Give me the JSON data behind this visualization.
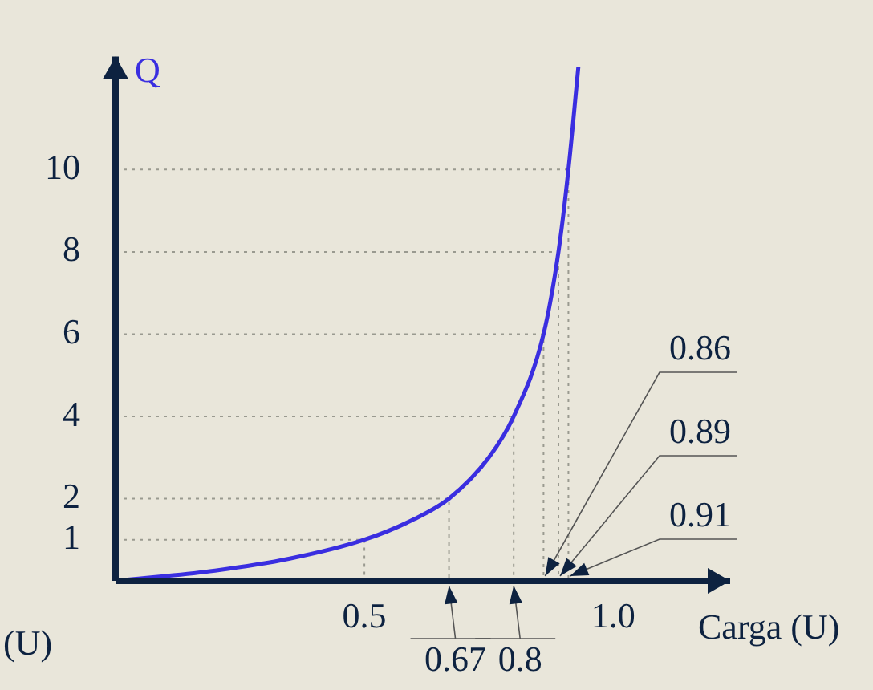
{
  "chart_data": {
    "type": "line",
    "xlabel": "Carga (U)",
    "ylabel": "Q",
    "x": [
      0,
      0.2,
      0.35,
      0.5,
      0.6,
      0.67,
      0.75,
      0.8,
      0.86,
      0.89,
      0.91,
      0.93
    ],
    "series": [
      {
        "color": "#3a2ee0",
        "values": [
          0,
          0.25,
          0.54,
          1,
          1.5,
          2,
          3,
          4,
          6,
          8,
          10,
          12.5
        ]
      },
      {
        "color": "#9a9a90",
        "line_style": "dotted",
        "x": [
          0,
          0.5,
          0.5
        ],
        "values": [
          1,
          1,
          0
        ]
      },
      {
        "color": "#9a9a90",
        "line_style": "dotted",
        "x": [
          0,
          0.67,
          0.67
        ],
        "values": [
          2,
          2,
          0
        ]
      },
      {
        "color": "#9a9a90",
        "line_style": "dotted",
        "x": [
          0,
          0.8,
          0.8
        ],
        "values": [
          4,
          4,
          0
        ]
      },
      {
        "color": "#9a9a90",
        "line_style": "dotted",
        "x": [
          0,
          0.86,
          0.86
        ],
        "values": [
          6,
          6,
          0
        ]
      },
      {
        "color": "#9a9a90",
        "line_style": "dotted",
        "x": [
          0,
          0.89,
          0.89
        ],
        "values": [
          8,
          8,
          0
        ]
      },
      {
        "color": "#9a9a90",
        "line_style": "dotted",
        "x": [
          0,
          0.91,
          0.91
        ],
        "values": [
          10,
          10,
          0
        ]
      }
    ],
    "xlim": [
      0,
      1.235
    ],
    "ylim": [
      0,
      12.75
    ],
    "xticks": [
      {
        "value": 0.5,
        "label": "0.5"
      },
      {
        "value": 1,
        "label": "1.0"
      }
    ],
    "yticks": [
      1,
      2,
      4,
      6,
      8,
      10
    ],
    "annotations": [
      {
        "text": "0.67",
        "x": 0.67,
        "y": 0
      },
      {
        "text": "0.8",
        "x": 0.8,
        "y": 0
      },
      {
        "text": "0.86",
        "x": 0.86,
        "y": 0
      },
      {
        "text": "0.89",
        "x": 0.89,
        "y": 0
      },
      {
        "text": "0.91",
        "x": 0.91,
        "y": 0
      },
      "(U)"
    ],
    "legend": false,
    "marker": "none",
    "line_style": "solid"
  }
}
